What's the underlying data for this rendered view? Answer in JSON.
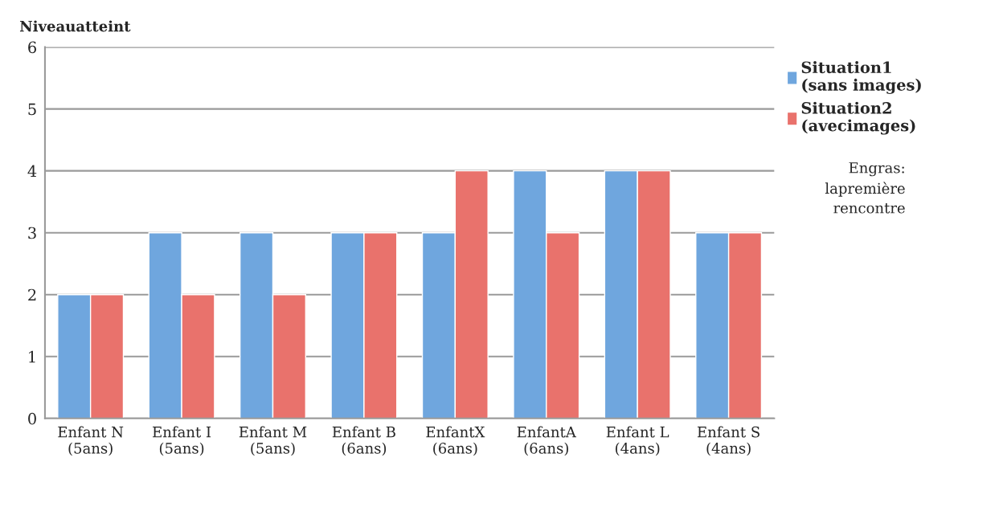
{
  "chart_data": {
    "type": "bar",
    "ylabel": "Niveauatteint",
    "categories": [
      "Enfant N\n(5ans)",
      "Enfant I\n(5ans)",
      "Enfant M\n(5ans)",
      "Enfant B\n(6ans)",
      "EnfantX\n(6ans)",
      "EnfantA\n(6ans)",
      "Enfant L\n(4ans)",
      "Enfant S\n(4ans)"
    ],
    "series": [
      {
        "name": "Situation1\n(sans images)",
        "color": "#6fa6de",
        "values": [
          2,
          3,
          3,
          3,
          3,
          4,
          4,
          3
        ]
      },
      {
        "name": "Situation2\n(avecimages)",
        "color": "#e9726c",
        "values": [
          2,
          2,
          2,
          3,
          4,
          3,
          4,
          3
        ]
      }
    ],
    "ylim": [
      0,
      6
    ],
    "yticks": [
      0,
      1,
      2,
      3,
      4,
      5,
      6
    ],
    "grid": "y",
    "legend": "top right",
    "annotations": [
      "Engras:\nlapremière\nrencontre"
    ]
  }
}
